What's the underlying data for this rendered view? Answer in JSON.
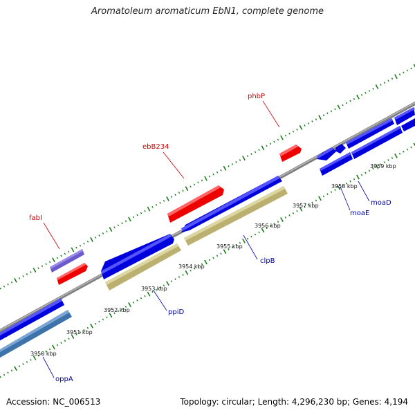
{
  "title": "Aromatoleum aromaticum EbN1, complete genome",
  "footer": {
    "accession": "Accession: NC_006513",
    "summary": "Topology: circular; Length: 4,296,230 bp; Genes: 4,194"
  },
  "colors": {
    "backbone": "#8a8a8a",
    "forward_gene": "#ff0000",
    "reverse_gene": "#0000ee",
    "pseudo_gene": "#6655cc",
    "cds_tan": "#c8c080",
    "cds_steel": "#4a80b8",
    "tick": "#1a7a1a",
    "label_forward": "#cc0000",
    "label_reverse": "#0000aa"
  },
  "ticks": [
    {
      "kbp": 3950,
      "label": "3950 kbp"
    },
    {
      "kbp": 3951,
      "label": "3951 kbp"
    },
    {
      "kbp": 3952,
      "label": "3952 kbp"
    },
    {
      "kbp": 3953,
      "label": "3953 kbp"
    },
    {
      "kbp": 3954,
      "label": "3954 kbp"
    },
    {
      "kbp": 3955,
      "label": "3955 kbp"
    },
    {
      "kbp": 3956,
      "label": "3956 kbp"
    },
    {
      "kbp": 3957,
      "label": "3957 kbp"
    },
    {
      "kbp": 3958,
      "label": "3958 kbp"
    },
    {
      "kbp": 3959,
      "label": "3959 kbp"
    }
  ],
  "genes": {
    "fabI": "fabI",
    "ebB234": "ebB234",
    "phbP": "phbP",
    "oppA": "oppA",
    "ppiD": "ppiD",
    "clpB": "clpB",
    "moaE": "moaE",
    "moaD": "moaD"
  }
}
